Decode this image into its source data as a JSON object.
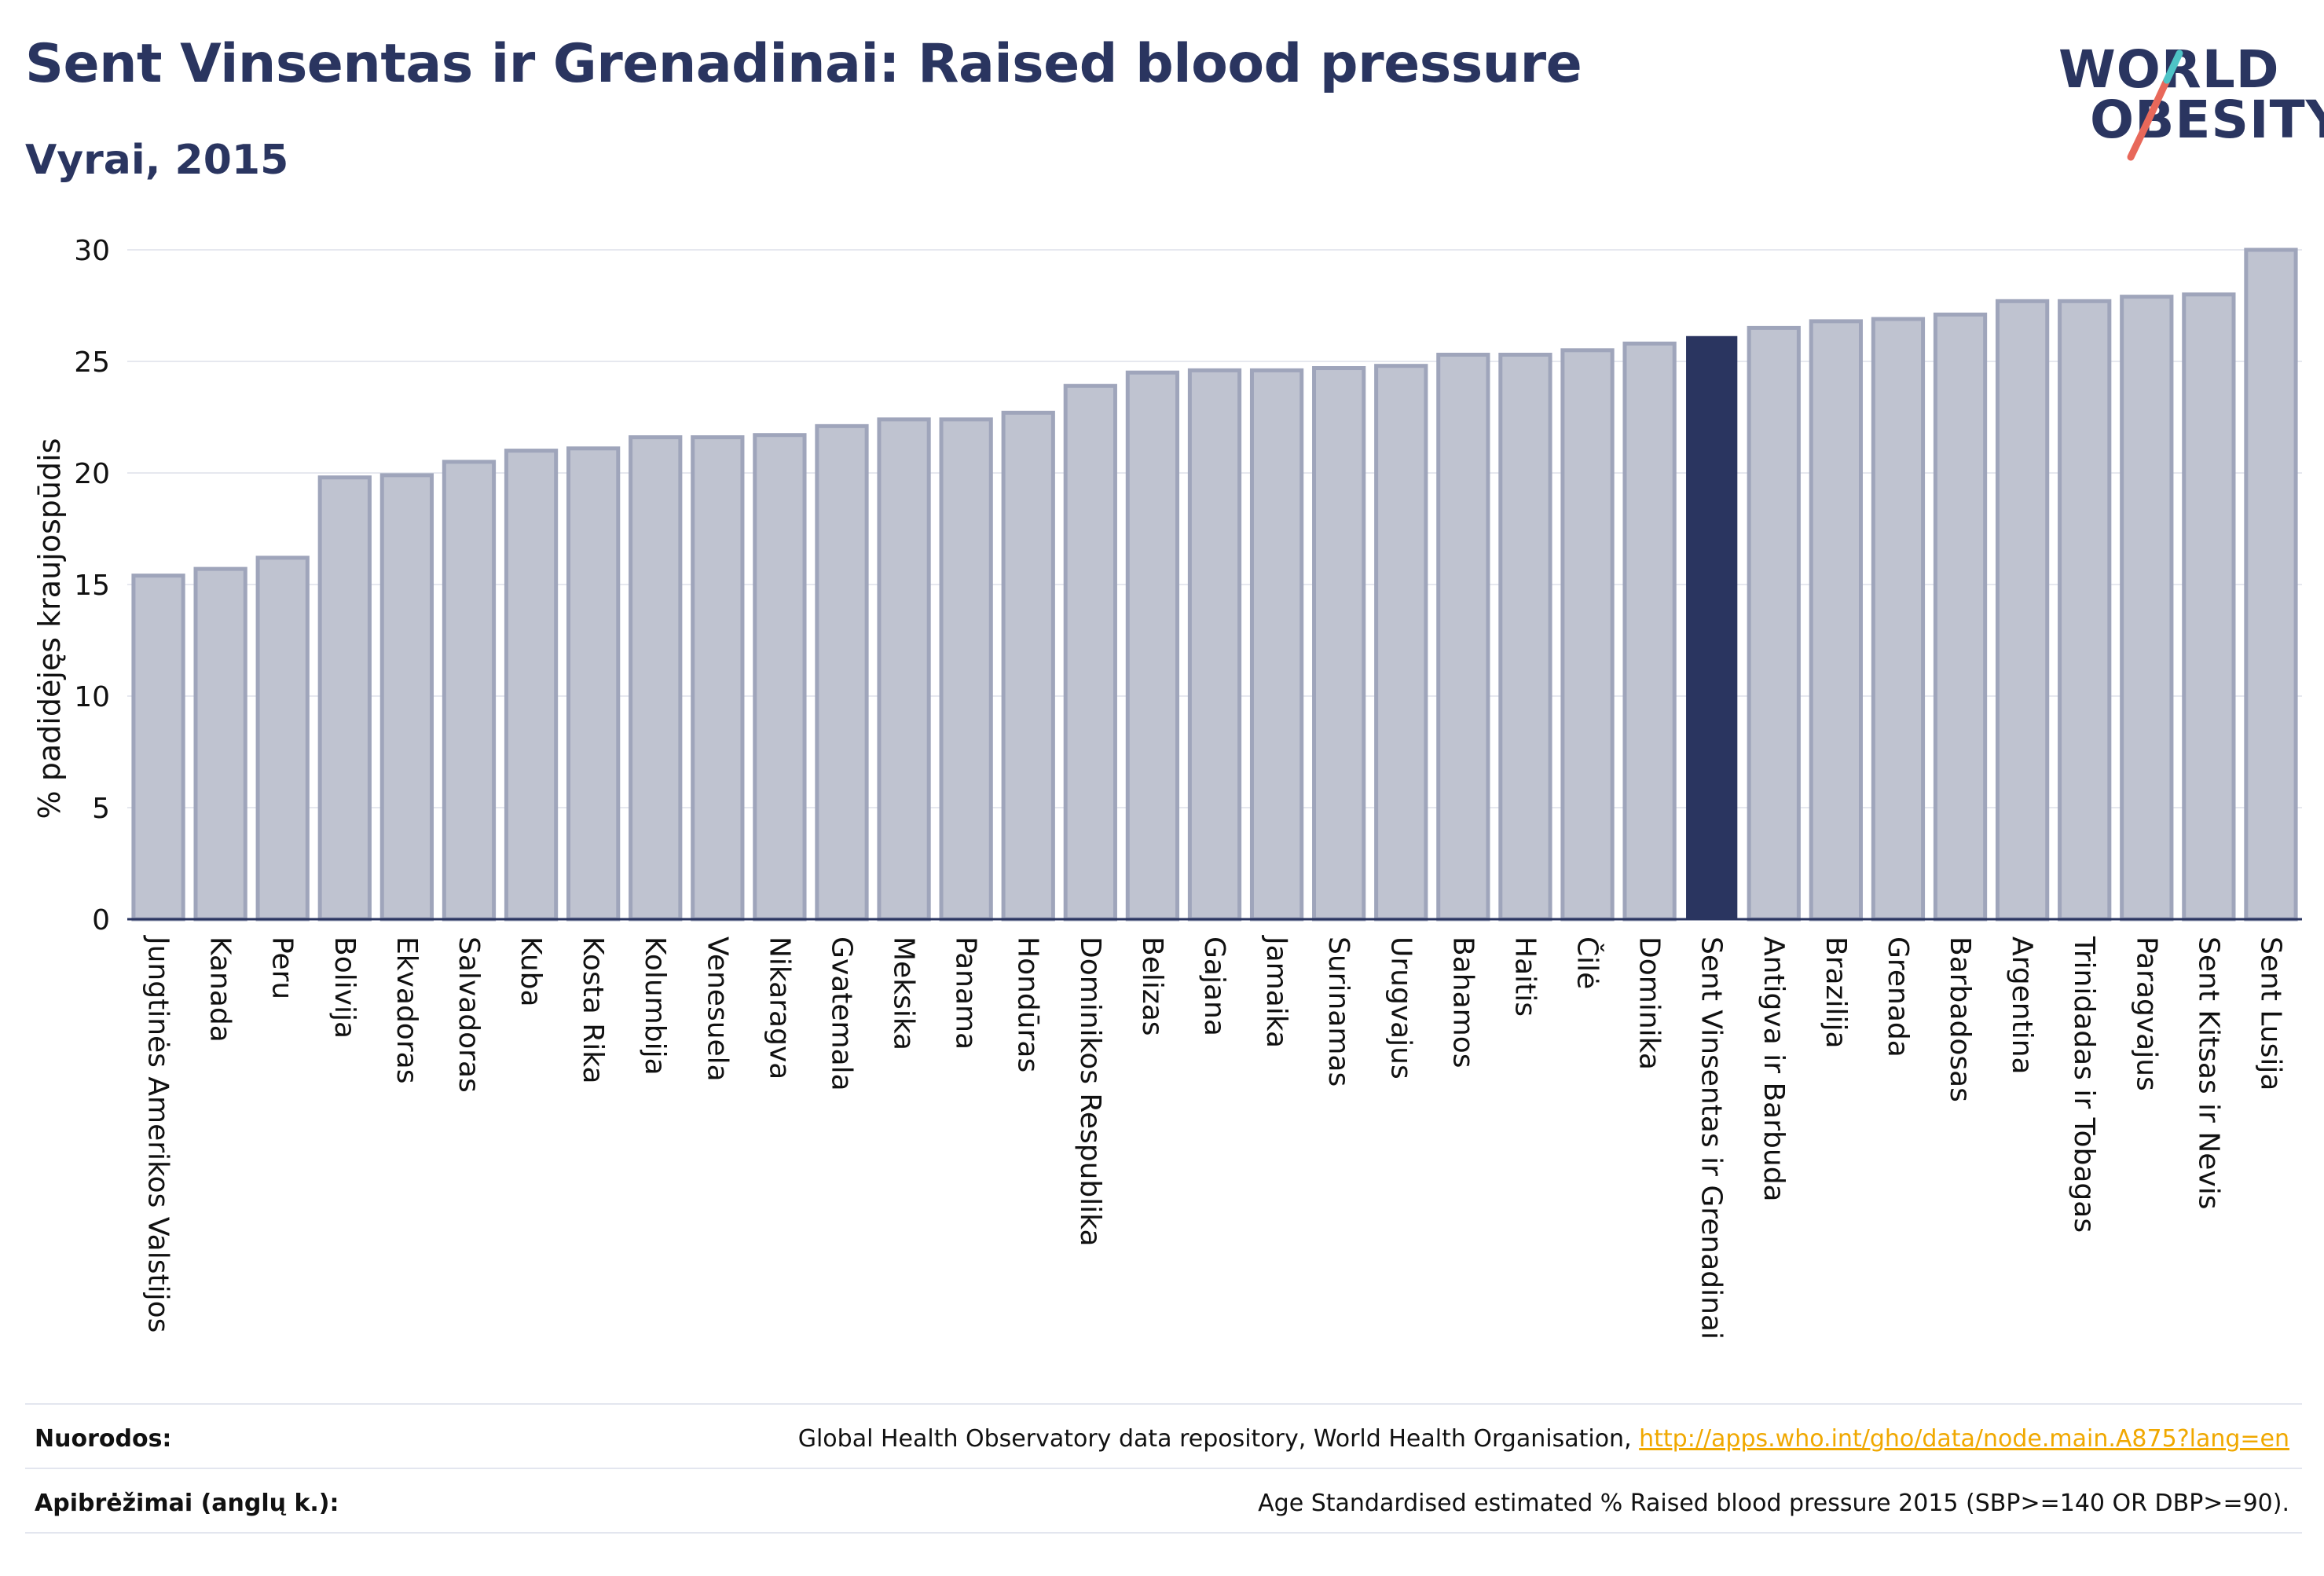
{
  "header": {
    "title": "Sent Vinsentas ir Grenadinai: Raised blood pressure",
    "subtitle": "Vyrai, 2015"
  },
  "logo": {
    "line1": "WORLD",
    "line2": "OBESITY",
    "accent_colors": [
      "#4ec3c6",
      "#e8685a"
    ]
  },
  "colors": {
    "bar": "#bfc3d0",
    "bar_border": "#9fa5bb",
    "highlight": "#2a3560",
    "text": "#2a3560",
    "grid": "#e6e8ef",
    "link": "#f0a800"
  },
  "chart_data": {
    "type": "bar",
    "title": "Sent Vinsentas ir Grenadinai: Raised blood pressure",
    "subtitle": "Vyrai, 2015",
    "xlabel": "",
    "ylabel": "% padidėjęs kraujospūdis",
    "ylim": [
      0,
      30
    ],
    "yticks": [
      0,
      5,
      10,
      15,
      20,
      25,
      30
    ],
    "grid": true,
    "highlight": "Sent Vinsentas ir Grenadinai",
    "categories": [
      "Jungtinės Amerikos Valstijos",
      "Kanada",
      "Peru",
      "Bolivija",
      "Ekvadoras",
      "Salvadoras",
      "Kuba",
      "Kosta Rika",
      "Kolumbija",
      "Venesuela",
      "Nikaragva",
      "Gvatemala",
      "Meksika",
      "Panama",
      "Hondūras",
      "Dominikos Respublika",
      "Belizas",
      "Gajana",
      "Jamaika",
      "Surinamas",
      "Urugvajus",
      "Bahamos",
      "Haitis",
      "Čilė",
      "Dominika",
      "Sent Vinsentas ir Grenadinai",
      "Antigva ir Barbuda",
      "Brazilija",
      "Grenada",
      "Barbadosas",
      "Argentina",
      "Trinidadas ir Tobagas",
      "Paragvajus",
      "Sent Kitsas ir Nevis",
      "Sent Lusija"
    ],
    "values": [
      15.4,
      15.7,
      16.2,
      19.8,
      19.9,
      20.5,
      21.0,
      21.1,
      21.6,
      21.6,
      21.7,
      22.1,
      22.4,
      22.4,
      22.7,
      23.9,
      24.5,
      24.6,
      24.6,
      24.7,
      24.8,
      25.3,
      25.3,
      25.5,
      25.8,
      26.1,
      26.5,
      26.8,
      26.9,
      27.1,
      27.7,
      27.7,
      27.9,
      28.0,
      30.0
    ]
  },
  "footer": {
    "references_label": "Nuorodos:",
    "references_text": "Global Health Observatory data repository, World Health Organisation, ",
    "references_link": "http://apps.who.int/gho/data/node.main.A875?lang=en",
    "definitions_label": "Apibrėžimai (anglų k.):",
    "definitions_text": "Age Standardised estimated % Raised blood pressure 2015 (SBP>=140 OR DBP>=90)."
  }
}
